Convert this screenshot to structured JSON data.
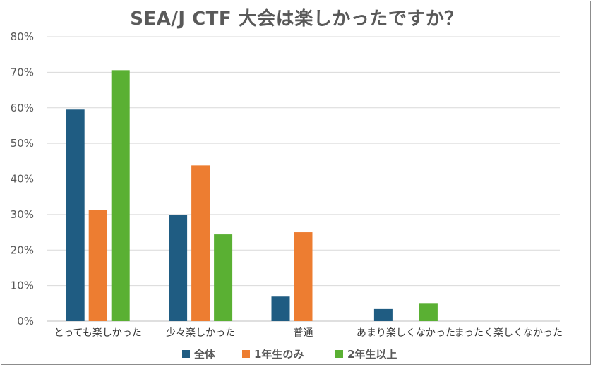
{
  "chart_data": {
    "type": "bar",
    "title": "SEA/J CTF 大会は楽しかったですか？",
    "categories": [
      "とっても楽しかった",
      "少々楽しかった",
      "普通",
      "あまり楽しくなかった",
      "まったく楽しくなかった"
    ],
    "series": [
      {
        "name": "全体",
        "color": "#1f5c82",
        "values": [
          59.5,
          29.8,
          6.9,
          3.4,
          0
        ]
      },
      {
        "name": "1年生のみ",
        "color": "#ed7d31",
        "values": [
          31.3,
          43.8,
          25.0,
          0,
          0
        ]
      },
      {
        "name": "2年生以上",
        "color": "#5ab033",
        "values": [
          70.6,
          24.4,
          0,
          4.9,
          0
        ]
      }
    ],
    "ylim": [
      0,
      80
    ],
    "yticks": [
      "0%",
      "10%",
      "20%",
      "30%",
      "40%",
      "50%",
      "60%",
      "70%",
      "80%"
    ],
    "grid": true,
    "legend_position": "bottom",
    "xlabel": "",
    "ylabel": ""
  }
}
